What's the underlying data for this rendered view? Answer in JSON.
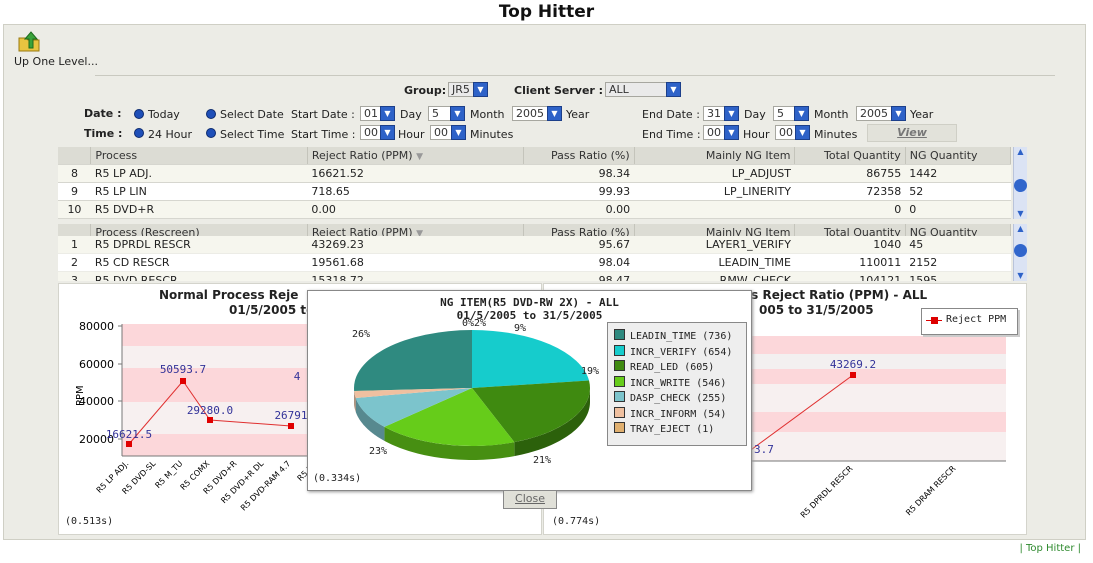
{
  "title": "Top Hitter",
  "nav": {
    "up_label": "Up One Level..."
  },
  "filters": {
    "group_label": "Group:",
    "group_value": "JR5",
    "client_label": "Client Server :",
    "client_value": "ALL",
    "date_label": "Date :",
    "today_label": "Today",
    "select_date_label": "Select Date",
    "time_label": "Time :",
    "hour24_label": "24 Hour",
    "select_time_label": "Select Time",
    "start_date_label": "Start Date :",
    "start_day": "01",
    "day_label": "Day",
    "start_month": "5",
    "month_label": "Month",
    "start_year": "2005",
    "year_label": "Year",
    "start_time_label": "Start Time :",
    "start_hour": "00",
    "hour_label": "Hour",
    "start_min": "00",
    "minutes_label": "Minutes",
    "end_date_label": "End Date :",
    "end_day": "31",
    "end_month": "5",
    "end_year": "2005",
    "end_time_label": "End Time :",
    "end_hour": "00",
    "end_min": "00",
    "view_label": "View"
  },
  "table1": {
    "headers": [
      "Process",
      "Reject Ratio (PPM)",
      "Pass Ratio (%)",
      "Mainly NG Item",
      "Total Quantity",
      "NG Quantity"
    ],
    "rows": [
      {
        "no": "8",
        "process": "R5 LP ADJ.",
        "reject": "16621.52",
        "pass": "98.34",
        "ng_item": "LP_ADJUST",
        "total": "86755",
        "ng": "1442"
      },
      {
        "no": "9",
        "process": "R5 LP LIN",
        "reject": "718.65",
        "pass": "99.93",
        "ng_item": "LP_LINERITY",
        "total": "72358",
        "ng": "52"
      },
      {
        "no": "10",
        "process": "R5 DVD+R",
        "reject": "0.00",
        "pass": "0.00",
        "ng_item": "",
        "total": "0",
        "ng": "0"
      }
    ]
  },
  "table2": {
    "headers": [
      "Process (Rescreen)",
      "Reject Ratio (PPM)",
      "Pass Ratio (%)",
      "Mainly NG Item",
      "Total Quantity",
      "NG Quantity"
    ],
    "rows": [
      {
        "no": "1",
        "process": "R5 DPRDL RESCR",
        "reject": "43269.23",
        "pass": "95.67",
        "ng_item": "LAYER1_VERIFY",
        "total": "1040",
        "ng": "45"
      },
      {
        "no": "2",
        "process": "R5 CD RESCR",
        "reject": "19561.68",
        "pass": "98.04",
        "ng_item": "LEADIN_TIME",
        "total": "110011",
        "ng": "2152"
      },
      {
        "no": "3",
        "process": "R5 DVD RESCR",
        "reject": "15318.72",
        "pass": "98.47",
        "ng_item": "RMW_CHECK",
        "total": "104121",
        "ng": "1595"
      }
    ]
  },
  "left_chart": {
    "title1": "Normal Process Reje",
    "title2": "01/5/2005 to",
    "ylabel": "PPM",
    "timing": "(0.513s)",
    "yticks": [
      "80000",
      "60000",
      "40000",
      "20000"
    ],
    "xlabels": [
      "R5 LP ADJ.",
      "R5 DVD-SL",
      "R5 M_TU",
      "R5 COMX",
      "R5 DVD+R",
      "R5 DVD+R DL",
      "R5 DVD-RAM 4.7",
      "R5 DV"
    ],
    "point_labels": [
      "16621.5",
      "50593.7",
      "29280.0",
      "26791",
      "4"
    ]
  },
  "right_chart": {
    "title1": "ss Reject Ratio (PPM) - ALL",
    "title2": "005 to 31/5/2005",
    "legend": "Reject PPM",
    "timing": "(0.774s)",
    "point_label": "43269.2",
    "partial_label": "3.7",
    "xlabels": [
      "R5 DPRDL RESCR",
      "R5 DRAM RESCR"
    ]
  },
  "pie_popup": {
    "title1": "NG ITEM(R5 DVD-RW 2X) - ALL",
    "title2": "01/5/2005 to 31/5/2005",
    "timing": "(0.334s)",
    "close_label": "Close",
    "pct_labels": [
      "26%",
      "0%2%",
      "9%",
      "19%",
      "21%",
      "23%"
    ]
  },
  "chart_data": {
    "type": "pie",
    "title": "NG ITEM(R5 DVD-RW 2X) - ALL",
    "subtitle": "01/5/2005 to 31/5/2005",
    "slices": [
      {
        "label": "LEADIN_TIME",
        "value": 736,
        "color": "#2f8a80"
      },
      {
        "label": "INCR_VERIFY",
        "value": 654,
        "color": "#16cccc"
      },
      {
        "label": "READ_LED",
        "value": 605,
        "color": "#3f8a10"
      },
      {
        "label": "INCR_WRITE",
        "value": 546,
        "color": "#66cc1a"
      },
      {
        "label": "DASP_CHECK",
        "value": 255,
        "color": "#7cc4cc"
      },
      {
        "label": "INCR_INFORM",
        "value": 54,
        "color": "#efc0a0"
      },
      {
        "label": "TRAY_EJECT",
        "value": 1,
        "color": "#e0b070"
      }
    ]
  },
  "footer": {
    "link": "| Top Hitter |"
  }
}
